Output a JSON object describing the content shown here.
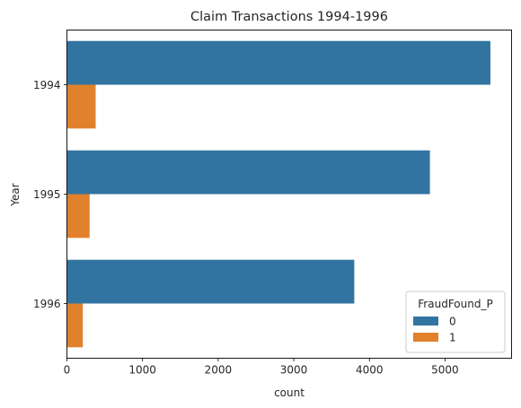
{
  "chart_data": {
    "type": "bar",
    "orientation": "horizontal",
    "title": "Claim Transactions 1994-1996",
    "xlabel": "count",
    "ylabel": "Year",
    "categories": [
      "1994",
      "1995",
      "1996"
    ],
    "series": [
      {
        "name": "0",
        "color": "#3274a1",
        "values": [
          5600,
          4800,
          3800
        ]
      },
      {
        "name": "1",
        "color": "#e1812c",
        "values": [
          380,
          300,
          210
        ]
      }
    ],
    "xlim": [
      0,
      5880
    ],
    "xticks": [
      0,
      1000,
      2000,
      3000,
      4000,
      5000
    ],
    "grid": false,
    "legend": {
      "title": "FraudFound_P",
      "position": "lower-right"
    }
  }
}
